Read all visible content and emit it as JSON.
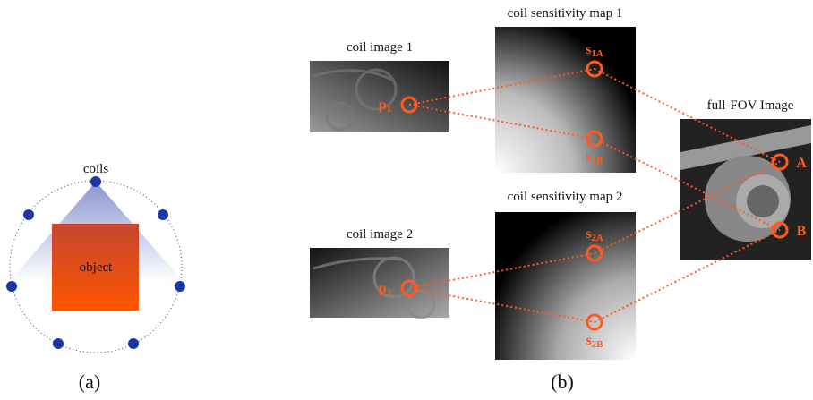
{
  "panel_a": {
    "coils_label": "coils",
    "object_label": "object",
    "caption": "(a)"
  },
  "panel_b": {
    "coil_images": [
      {
        "title": "coil image 1",
        "point": {
          "base": "p",
          "sub": "1"
        }
      },
      {
        "title": "coil image 2",
        "point": {
          "base": "p",
          "sub": "2"
        }
      }
    ],
    "sensitivity_maps": [
      {
        "title": "coil sensitivity map 1",
        "points": [
          {
            "base": "s",
            "sub": "1A"
          },
          {
            "base": "s",
            "sub": "1B"
          }
        ]
      },
      {
        "title": "coil sensitivity map 2",
        "points": [
          {
            "base": "s",
            "sub": "2A"
          },
          {
            "base": "s",
            "sub": "2B"
          }
        ]
      }
    ],
    "full_fov": {
      "title": "full-FOV Image",
      "points": [
        "A",
        "B"
      ]
    },
    "caption": "(b)"
  }
}
